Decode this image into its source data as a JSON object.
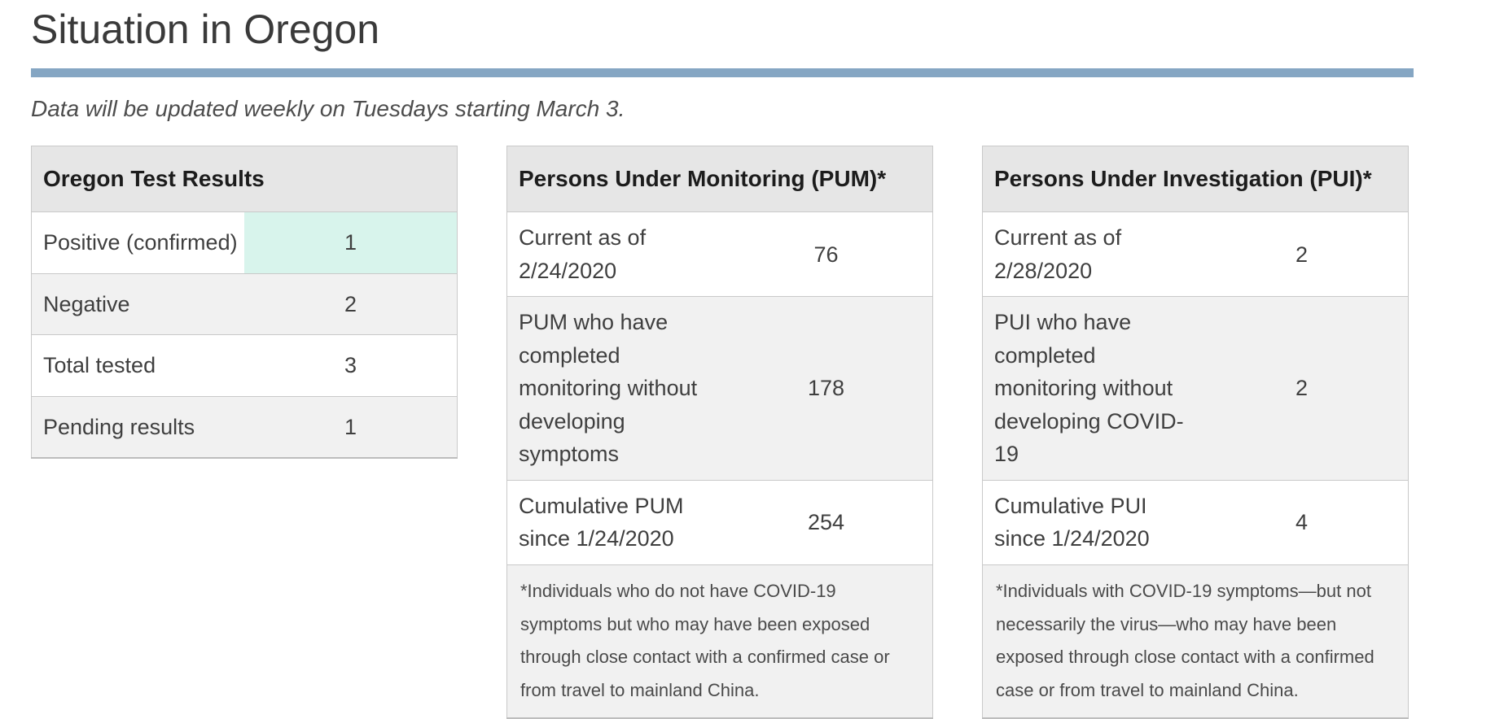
{
  "page": {
    "title": "Situation in Oregon",
    "update_note": "Data will be updated weekly on Tuesdays starting March 3.",
    "accent_bar_color": "#85a6c3",
    "highlight_color": "#d8f4ec",
    "header_bg_color": "#e6e6e6",
    "stripe_bg_color": "#f1f1f1"
  },
  "tables": [
    {
      "title": "Oregon Test Results",
      "rows": [
        {
          "label": "Positive (confirmed)",
          "value": "1"
        },
        {
          "label": "Negative",
          "value": "2"
        },
        {
          "label": "Total tested",
          "value": "3"
        },
        {
          "label": "Pending results",
          "value": "1"
        }
      ]
    },
    {
      "title": "Persons Under Monitoring (PUM)*",
      "rows": [
        {
          "label": "Current as of 2/24/2020",
          "value": "76"
        },
        {
          "label": "PUM who have completed monitoring without developing symptoms",
          "value": "178"
        },
        {
          "label": "Cumulative PUM since 1/24/2020",
          "value": "254"
        }
      ],
      "footnote": "*Individuals who do not have COVID-19 symptoms but who may have been exposed through close contact with a confirmed case or from travel to mainland China."
    },
    {
      "title": "Persons Under Investigation (PUI)*",
      "rows": [
        {
          "label": "Current as of 2/28/2020",
          "value": "2"
        },
        {
          "label": "PUI who have completed monitoring without developing COVID-19",
          "value": "2"
        },
        {
          "label": "Cumulative PUI since 1/24/2020",
          "value": "4"
        }
      ],
      "footnote": "*Individuals with COVID-19 symptoms—but not necessarily the virus—who may have been exposed through close contact with a confirmed case or from travel to mainland China."
    }
  ]
}
